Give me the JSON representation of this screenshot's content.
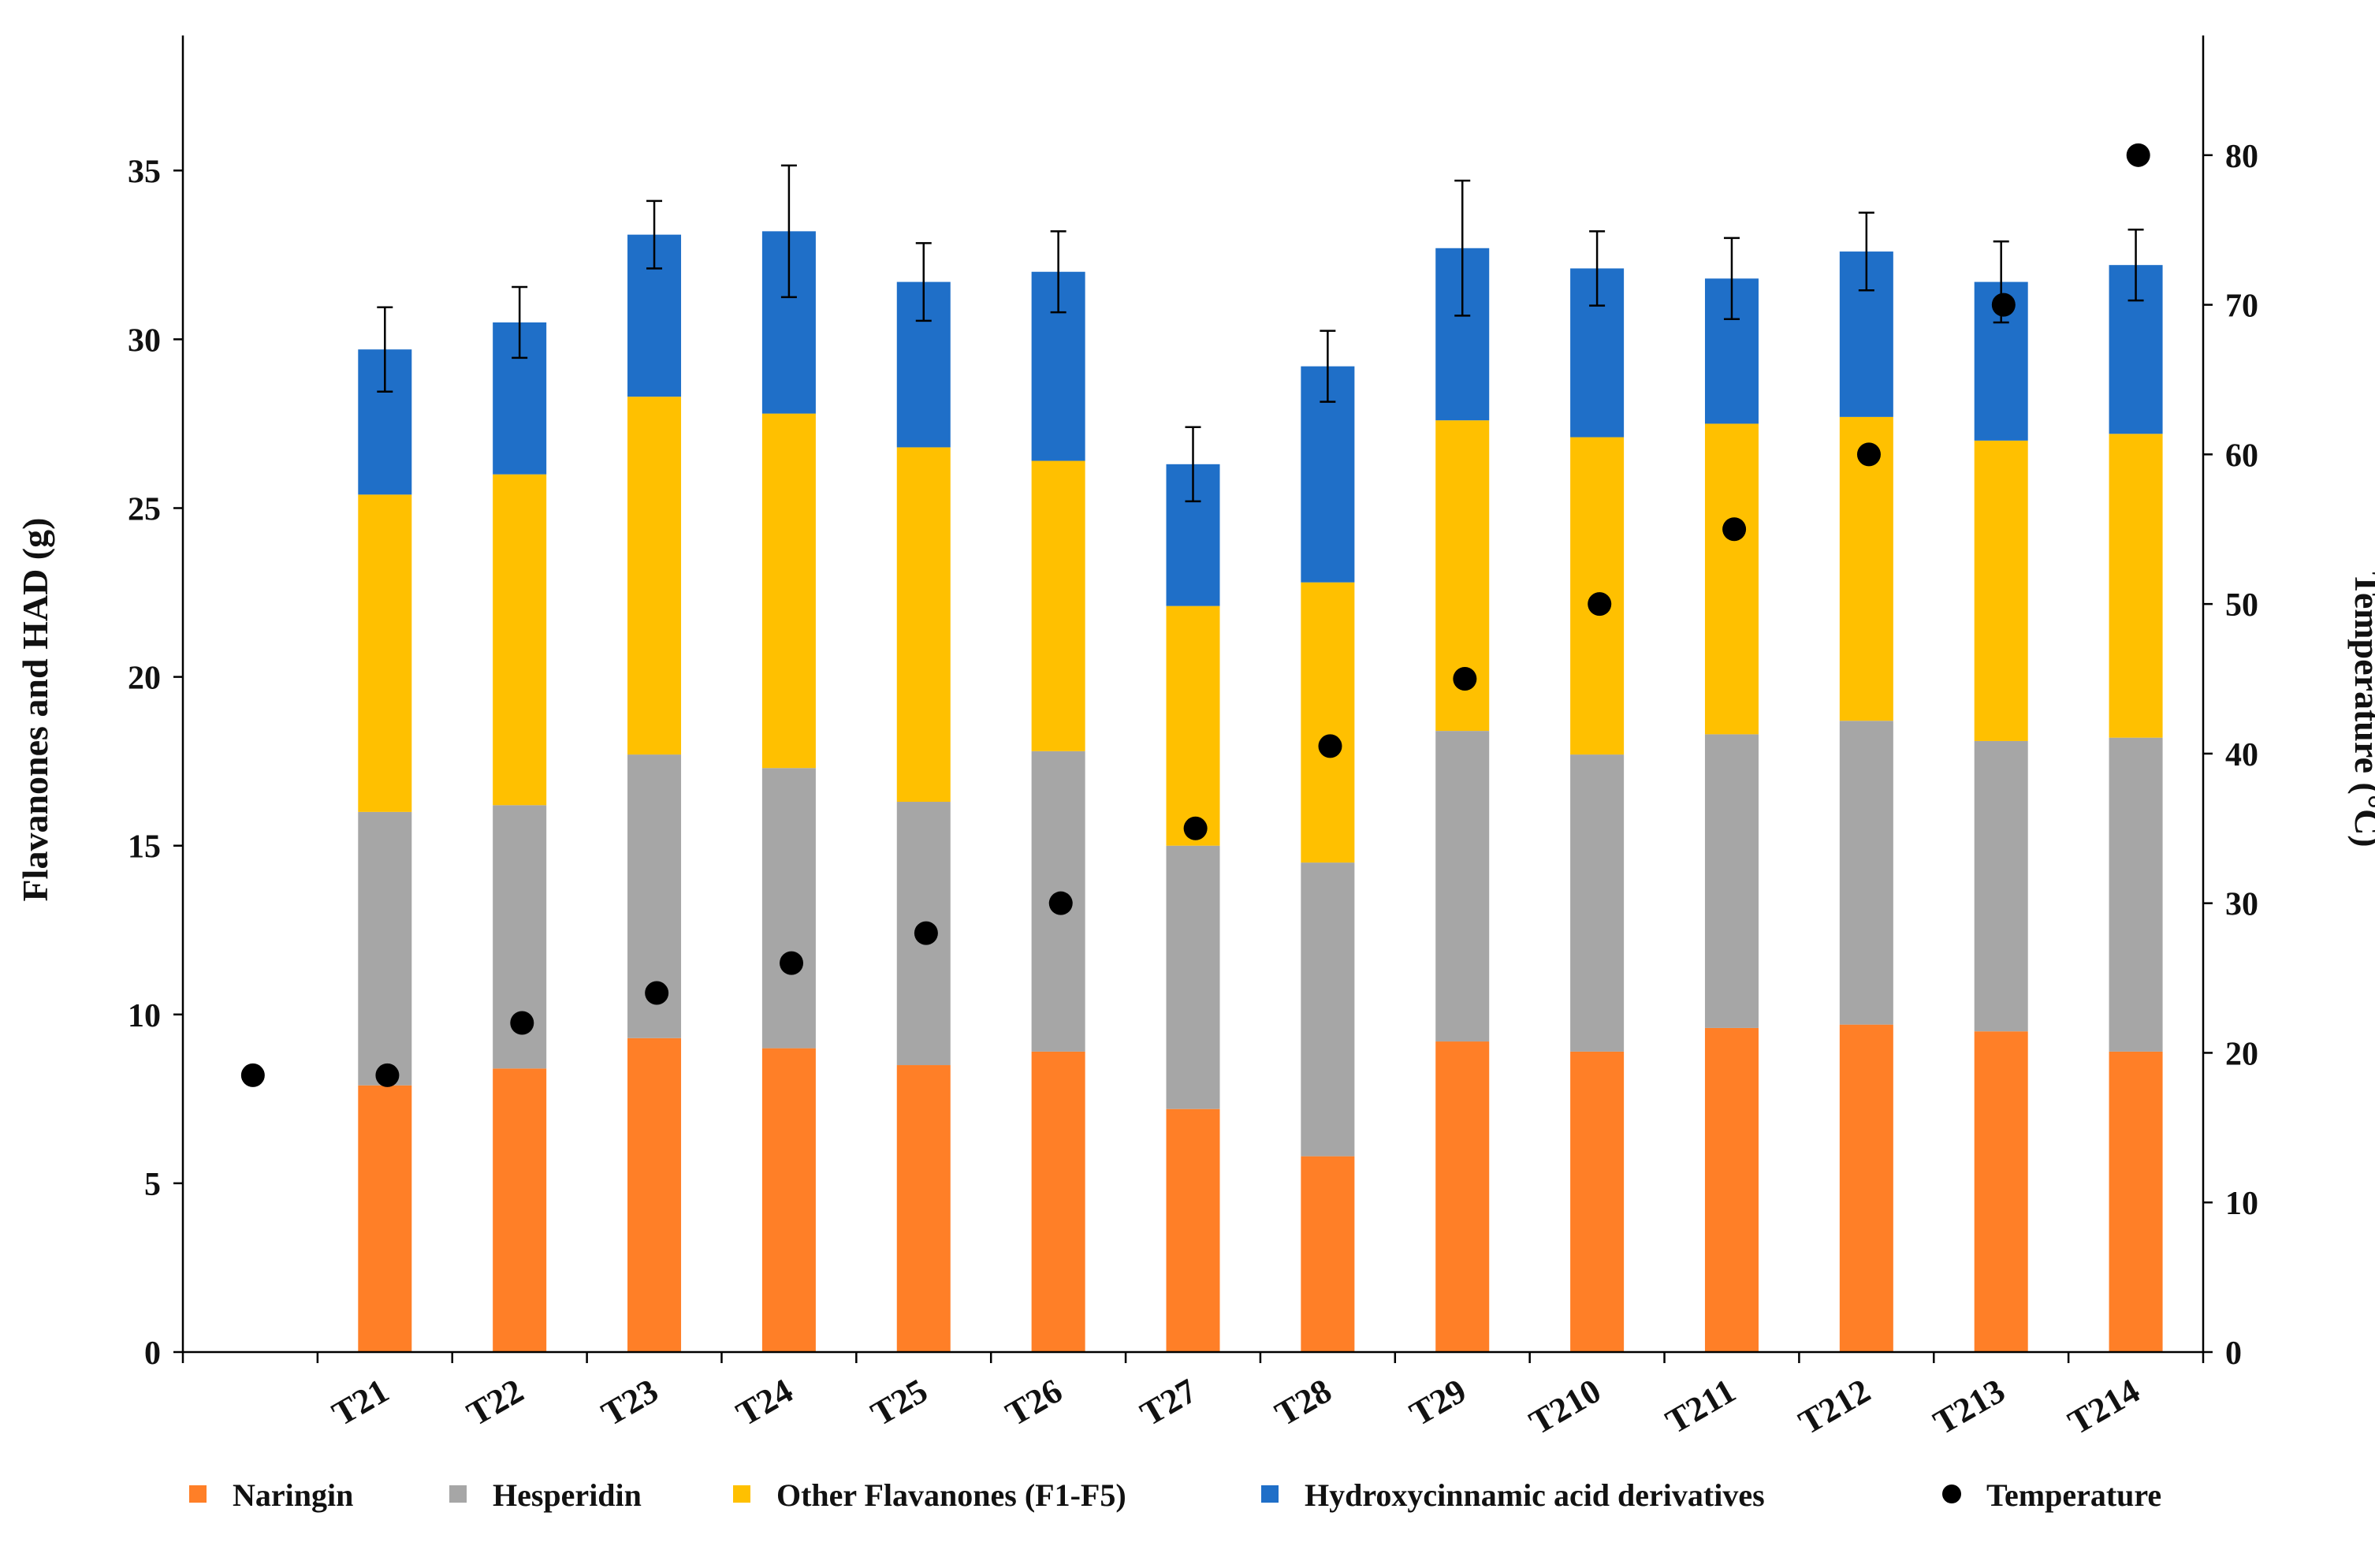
{
  "chart_data": {
    "type": "bar",
    "stacked": true,
    "categories": [
      "",
      "T21",
      "T22",
      "T23",
      "T24",
      "T25",
      "T26",
      "T27",
      "T28",
      "T29",
      "T210",
      "T211",
      "T212",
      "T213",
      "T214"
    ],
    "series": [
      {
        "name": "Naringin",
        "color": "#FF7F27",
        "values": [
          0,
          7.9,
          8.4,
          9.3,
          9.0,
          8.5,
          8.9,
          7.2,
          5.8,
          9.2,
          8.9,
          9.6,
          9.7,
          9.5,
          8.9
        ]
      },
      {
        "name": "Hesperidin",
        "color": "#A6A6A6",
        "values": [
          0,
          8.1,
          7.8,
          8.4,
          8.3,
          7.8,
          8.9,
          7.8,
          8.7,
          9.2,
          8.8,
          8.7,
          9.0,
          8.6,
          9.3
        ]
      },
      {
        "name": "Other Flavanones (F1-F5)",
        "color": "#FFC000",
        "values": [
          0,
          9.4,
          9.8,
          10.6,
          10.5,
          10.5,
          8.6,
          7.1,
          8.3,
          9.2,
          9.4,
          9.2,
          9.0,
          8.9,
          9.0
        ]
      },
      {
        "name": "Hydroxycinnamic acid derivatives",
        "color": "#1F6FC8",
        "values": [
          0,
          4.3,
          4.5,
          4.8,
          5.4,
          4.9,
          5.6,
          4.2,
          6.4,
          5.1,
          5.0,
          4.3,
          4.9,
          4.7,
          5.0
        ]
      }
    ],
    "error_bars": [
      null,
      1.25,
      1.05,
      1.0,
      1.95,
      1.15,
      1.2,
      1.1,
      1.05,
      2.0,
      1.1,
      1.2,
      1.15,
      1.2,
      1.05
    ],
    "temperature_series": {
      "name": "Temperature",
      "color": "#000000",
      "values": [
        18.5,
        18.5,
        22,
        24,
        26,
        28,
        30,
        35,
        40.5,
        45,
        50,
        55,
        60,
        70,
        80
      ]
    },
    "xlabel": "",
    "ylabel": "Flavanones and HAD (g)",
    "ylabel_right": "Temperature (°C)",
    "ylim": [
      0,
      39
    ],
    "ylim_right": [
      0,
      88
    ],
    "yticks": [
      0,
      5,
      10,
      15,
      20,
      25,
      30,
      35
    ],
    "yticks_right": [
      0,
      10,
      20,
      30,
      40,
      50,
      60,
      70,
      80
    ],
    "legend_position": "bottom"
  }
}
